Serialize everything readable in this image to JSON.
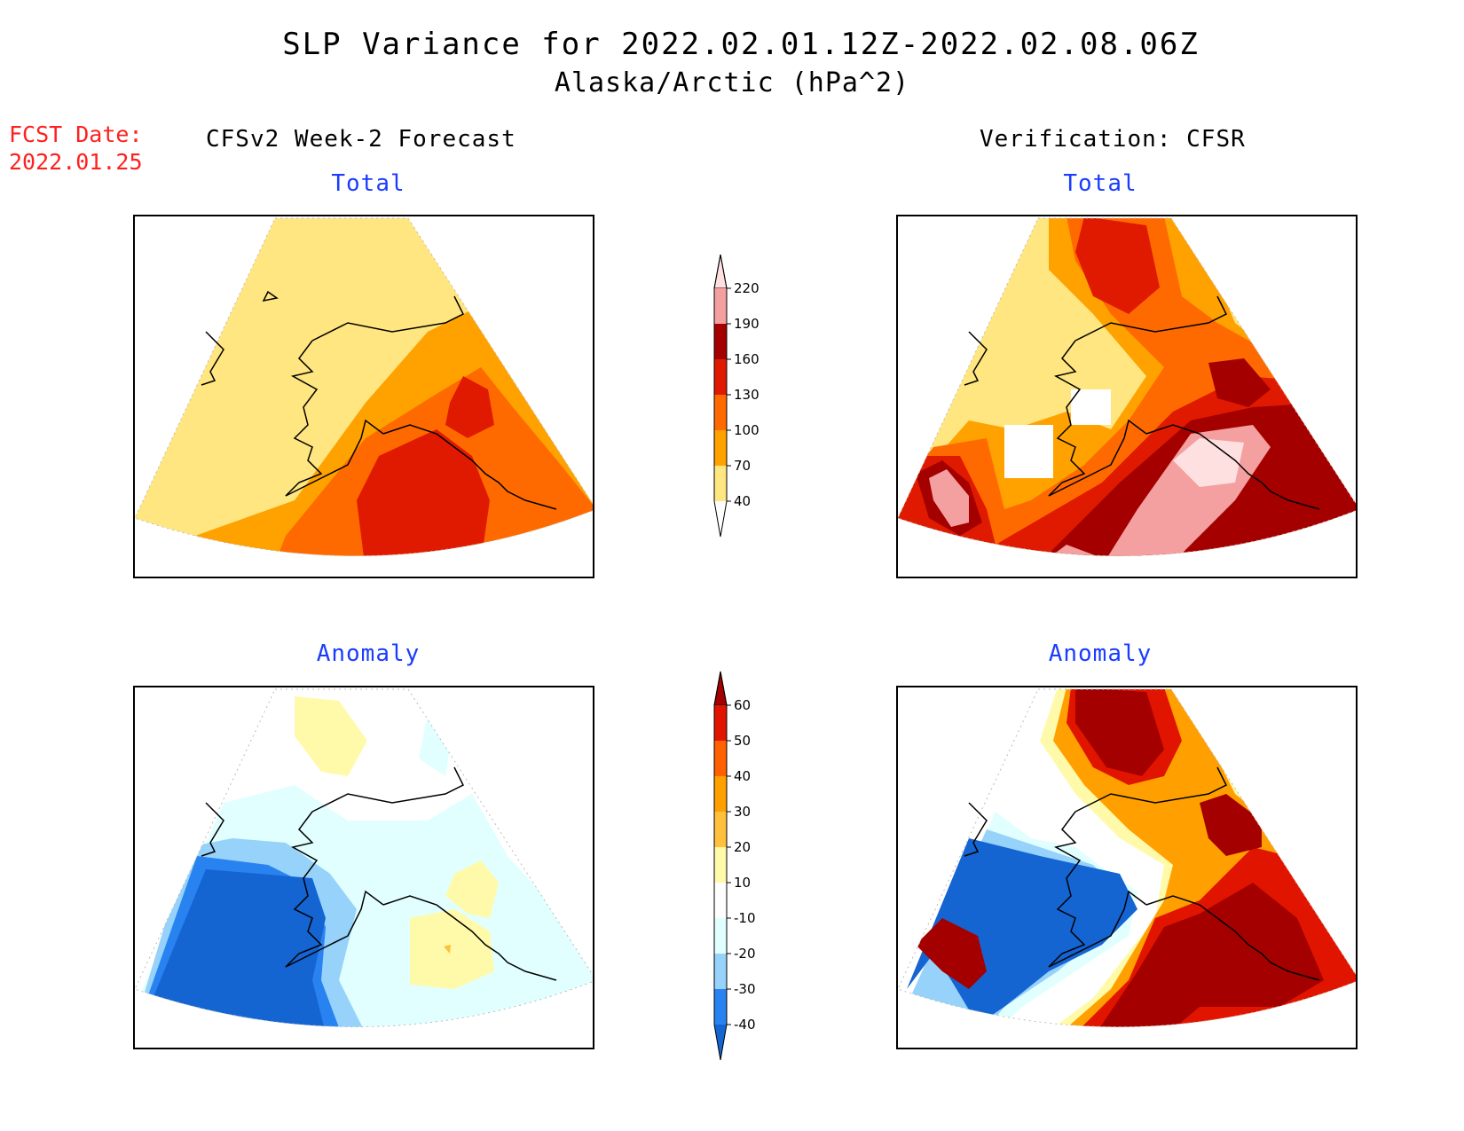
{
  "header": {
    "title_line1": "SLP Variance for 2022.02.01.12Z-2022.02.08.06Z",
    "title_line2": "Alaska/Arctic (hPa^2)",
    "fcst_date_label": "FCST Date:",
    "fcst_date_value": "2022.01.25",
    "left_column": "CFSv2 Week-2 Forecast",
    "right_column": "Verification: CFSR"
  },
  "panels": {
    "forecast_total": {
      "title": "Total"
    },
    "verify_total": {
      "title": "Total"
    },
    "forecast_anomaly": {
      "title": "Anomaly"
    },
    "verify_anomaly": {
      "title": "Anomaly"
    }
  },
  "colorbars": {
    "total": {
      "levels": [
        "40",
        "70",
        "100",
        "130",
        "160",
        "190",
        "220"
      ],
      "colors": [
        "#ffffff",
        "#ffe680",
        "#ffa200",
        "#ff6a00",
        "#e01a00",
        "#a50000",
        "#f4a0a0",
        "#ffe0e0"
      ]
    },
    "anomaly": {
      "levels": [
        "-40",
        "-30",
        "-20",
        "-10",
        "10",
        "20",
        "30",
        "40",
        "50",
        "60"
      ],
      "colors": [
        "#1464d2",
        "#2882f0",
        "#96d2fa",
        "#e1ffff",
        "#ffffff",
        "#fffaaa",
        "#ffc03c",
        "#ffa000",
        "#ff6000",
        "#e11400",
        "#a50000"
      ]
    }
  },
  "map_colors": {
    "total_40_70": "#ffe680",
    "total_70_100": "#ffa200",
    "total_100_130": "#ff6a00",
    "total_130_160": "#e01a00",
    "total_160_190": "#a50000",
    "total_190_220": "#f4a0a0",
    "total_220_plus": "#ffe0e0",
    "anom_neg40": "#1464d2",
    "anom_neg30": "#2882f0",
    "anom_neg20": "#96d2fa",
    "anom_neg10": "#e1ffff",
    "anom_pos10": "#fffaaa",
    "anom_pos20": "#ffc03c",
    "anom_pos30": "#ffa000",
    "anom_pos40": "#ff6000",
    "anom_pos50": "#e11400",
    "anom_pos60": "#a50000"
  }
}
